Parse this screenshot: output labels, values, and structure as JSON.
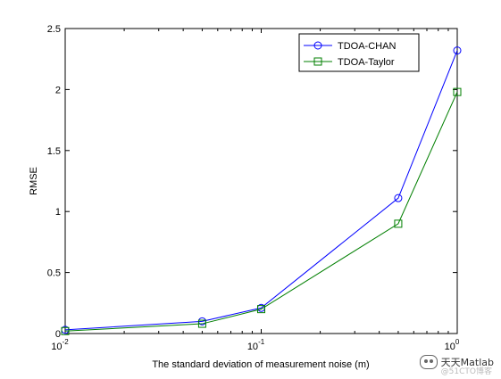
{
  "chart_data": {
    "type": "line",
    "xscale": "log",
    "xlim": [
      0.01,
      1
    ],
    "ylim": [
      0,
      2.5
    ],
    "xticks": [
      0.01,
      0.1,
      1
    ],
    "xtick_labels": [
      {
        "base": "10",
        "exp": "-2"
      },
      {
        "base": "10",
        "exp": "-1"
      },
      {
        "base": "10",
        "exp": "0"
      }
    ],
    "yticks": [
      0,
      0.5,
      1,
      1.5,
      2,
      2.5
    ],
    "ytick_labels": [
      "0",
      "0.5",
      "1",
      "1.5",
      "2",
      "2.5"
    ],
    "xlabel": "The standard deviation of measurement noise (m)",
    "ylabel": "RMSE",
    "legend_position": "top-right",
    "grid": false,
    "x": [
      0.01,
      0.05,
      0.1,
      0.5,
      1
    ],
    "series": [
      {
        "name": "TDOA-CHAN",
        "color": "#0000ff",
        "marker": "circle",
        "values": [
          0.03,
          0.1,
          0.21,
          1.11,
          2.32
        ]
      },
      {
        "name": "TDOA-Taylor",
        "color": "#007f00",
        "marker": "square",
        "values": [
          0.02,
          0.08,
          0.2,
          0.9,
          1.98
        ]
      }
    ]
  },
  "watermark": {
    "text": "天天Matlab",
    "sub_text": "@51CTO博客",
    "icon": "chat-bubble-icon"
  }
}
